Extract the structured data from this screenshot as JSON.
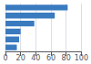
{
  "chart_data": {
    "type": "bar",
    "orientation": "horizontal",
    "values": [
      82,
      65,
      38,
      20,
      18,
      15
    ],
    "color": "#3a7abf",
    "xlim": [
      0,
      100
    ],
    "xticks": [
      0,
      20,
      40,
      60,
      80,
      100
    ],
    "grid": true,
    "tick_labels": "x"
  }
}
